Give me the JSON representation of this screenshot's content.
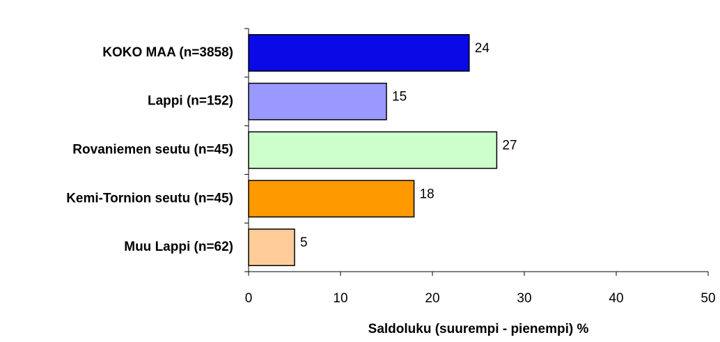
{
  "chart_data": {
    "type": "bar",
    "orientation": "horizontal",
    "x_label": "Saldoluku (suurempi - pienempi) %",
    "categories": [
      "KOKO MAA (n=3858)",
      "Lappi (n=152)",
      "Rovaniemen seutu (n=45)",
      "Kemi-Tornion seutu (n=45)",
      "Muu Lappi (n=62)"
    ],
    "values": [
      24,
      15,
      27,
      18,
      5
    ],
    "colors": [
      "#0a0ae6",
      "#9999ff",
      "#ccffcc",
      "#ff9900",
      "#ffcc99"
    ],
    "xlim": [
      0,
      50
    ],
    "xticks": [
      0,
      10,
      20,
      30,
      40,
      50
    ]
  }
}
